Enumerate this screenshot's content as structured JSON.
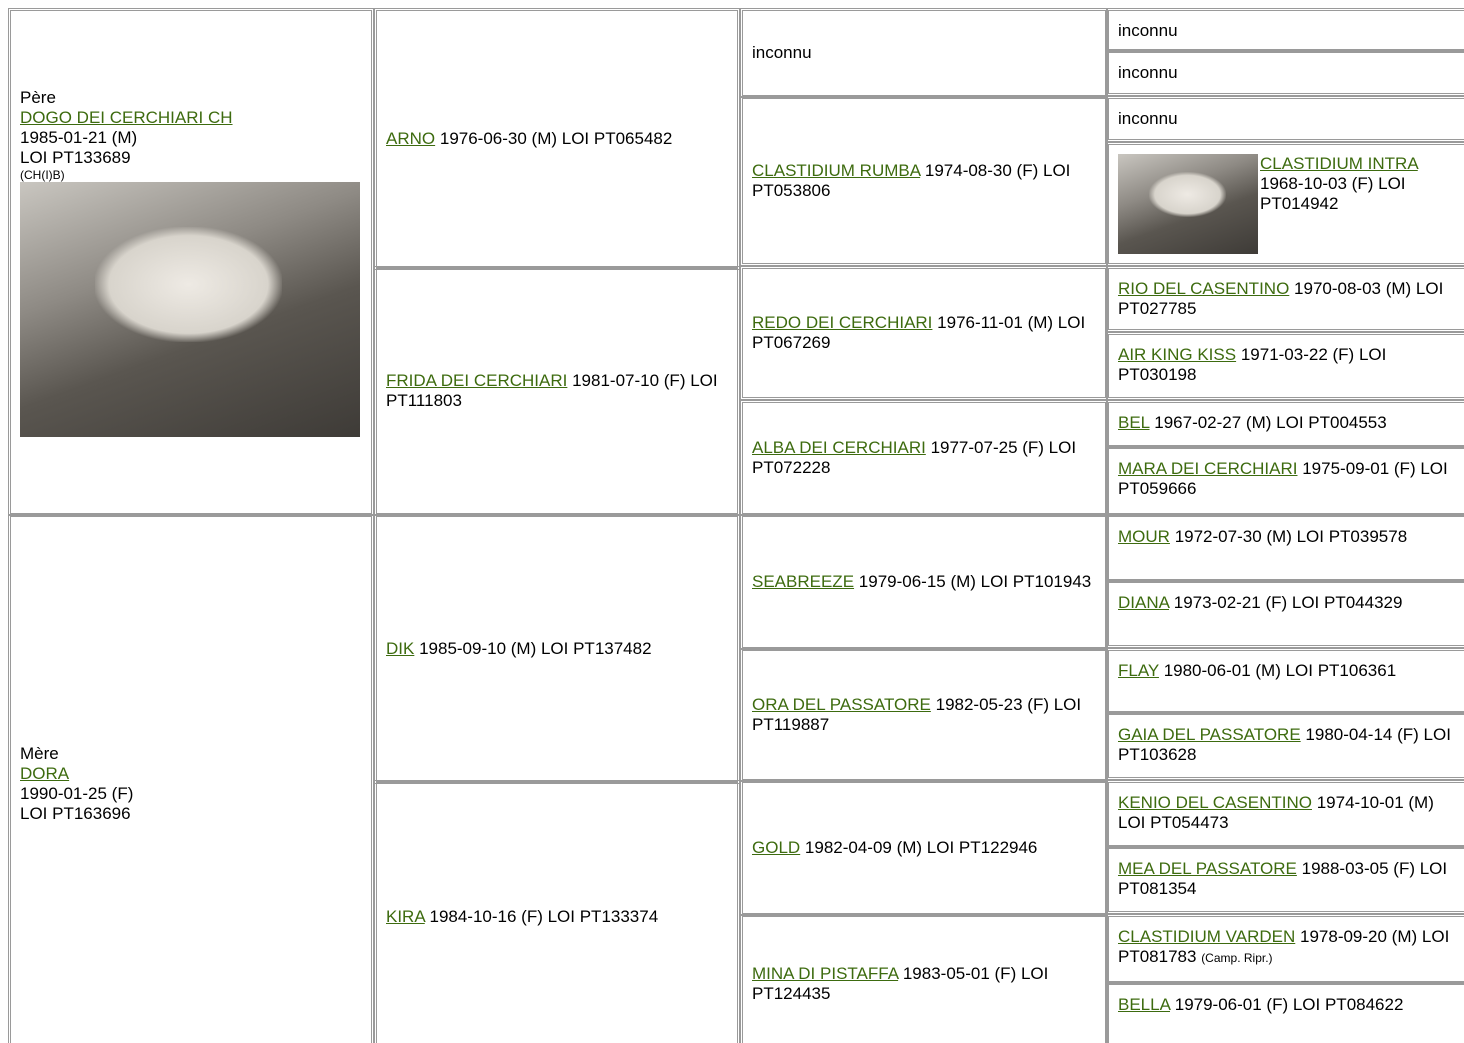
{
  "pedigree": {
    "sire": {
      "label": "Père",
      "name": "DOGO DEI CERCHIARI CH",
      "birth": "1985-01-21 (M)",
      "registration": "LOI PT133689",
      "titles": "(CH(I)B)",
      "photo": true
    },
    "dam": {
      "label": "Mère",
      "name": "DORA",
      "birth": "1990-01-25 (F)",
      "registration": "LOI PT163696"
    },
    "generation2": [
      {
        "name": "ARNO",
        "details": "1976-06-30 (M) LOI PT065482"
      },
      {
        "name": "FRIDA DEI CERCHIARI",
        "details": "1981-07-10 (F) LOI PT111803"
      },
      {
        "name": "DIK",
        "details": "1985-09-10 (M) LOI PT137482"
      },
      {
        "name": "KIRA",
        "details": "1984-10-16 (F) LOI PT133374"
      }
    ],
    "generation3": [
      {
        "text": "inconnu"
      },
      {
        "name": "CLASTIDIUM RUMBA",
        "details": "1974-08-30 (F) LOI PT053806"
      },
      {
        "name": "REDO DEI CERCHIARI",
        "details": "1976-11-01 (M) LOI PT067269"
      },
      {
        "name": "ALBA DEI CERCHIARI",
        "details": "1977-07-25 (F) LOI PT072228"
      },
      {
        "name": "SEABREEZE",
        "details": "1979-06-15 (M) LOI PT101943"
      },
      {
        "name": "ORA DEL PASSATORE",
        "details": "1982-05-23 (F) LOI PT119887"
      },
      {
        "name": "GOLD",
        "details": "1982-04-09 (M) LOI PT122946"
      },
      {
        "name": "MINA DI PISTAFFA",
        "details": "1983-05-01 (F) LOI PT124435"
      }
    ],
    "generation4": [
      {
        "text": "inconnu"
      },
      {
        "text": "inconnu"
      },
      {
        "text": "inconnu"
      },
      {
        "name": "CLASTIDIUM INTRA",
        "details": "1968-10-03 (F) LOI PT014942",
        "photo": true
      },
      {
        "name": "RIO DEL CASENTINO",
        "details": "1970-08-03 (M) LOI PT027785"
      },
      {
        "name": "AIR KING KISS",
        "details": "1971-03-22 (F) LOI PT030198"
      },
      {
        "name": "BEL",
        "details": "1967-02-27 (M) LOI PT004553"
      },
      {
        "name": "MARA DEI CERCHIARI",
        "details": "1975-09-01 (F) LOI PT059666"
      },
      {
        "name": "MOUR",
        "details": "1972-07-30 (M) LOI PT039578"
      },
      {
        "name": "DIANA",
        "details": "1973-02-21 (F) LOI PT044329"
      },
      {
        "name": "FLAY",
        "details": "1980-06-01 (M) LOI PT106361"
      },
      {
        "name": "GAIA DEL PASSATORE",
        "details": "1980-04-14 (F) LOI PT103628"
      },
      {
        "name": "KENIO DEL CASENTINO",
        "details": "1974-10-01 (M) LOI PT054473"
      },
      {
        "name": "MEA DEL PASSATORE",
        "details": "1988-03-05 (F) LOI PT081354"
      },
      {
        "name": "CLASTIDIUM VARDEN",
        "details": "1978-09-20 (M) LOI PT081783",
        "note": "(Camp. Ripr.)"
      },
      {
        "name": "BELLA",
        "details": "1979-06-01 (F) LOI PT084622"
      }
    ]
  }
}
